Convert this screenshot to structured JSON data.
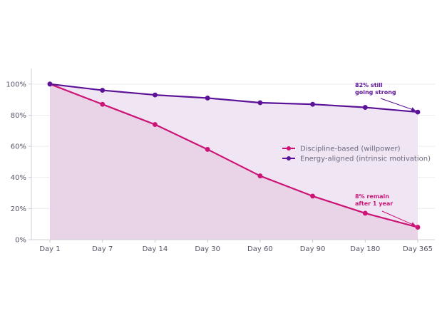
{
  "chart_data": {
    "type": "line",
    "title": "",
    "xlabel": "",
    "ylabel": "",
    "categories": [
      "Day 1",
      "Day 7",
      "Day 14",
      "Day 30",
      "Day 60",
      "Day 90",
      "Day 180",
      "Day 365"
    ],
    "ylim": [
      0,
      110
    ],
    "yticks": [
      0,
      20,
      40,
      60,
      80,
      100
    ],
    "ytick_labels": [
      "0%",
      "20%",
      "40%",
      "60%",
      "80%",
      "100%"
    ],
    "grid": true,
    "legend_position": "center-right",
    "series": [
      {
        "name": "Discipline-based (willpower)",
        "values": [
          100,
          87,
          74,
          58,
          41,
          28,
          17,
          8
        ],
        "color": "#cc1477",
        "fill": "#e8d0e6"
      },
      {
        "name": "Energy-aligned (intrinsic motivation)",
        "values": [
          100,
          96,
          93,
          91,
          88,
          87,
          85,
          82
        ],
        "color": "#5b1298",
        "fill": "#eee2f1"
      }
    ],
    "annotations": [
      {
        "lines": [
          "82% still",
          "going strong"
        ],
        "series": 1,
        "index": 7,
        "color": "#5b1298"
      },
      {
        "lines": [
          "8% remain",
          "after 1 year"
        ],
        "series": 0,
        "index": 7,
        "color": "#cc1477"
      }
    ]
  }
}
